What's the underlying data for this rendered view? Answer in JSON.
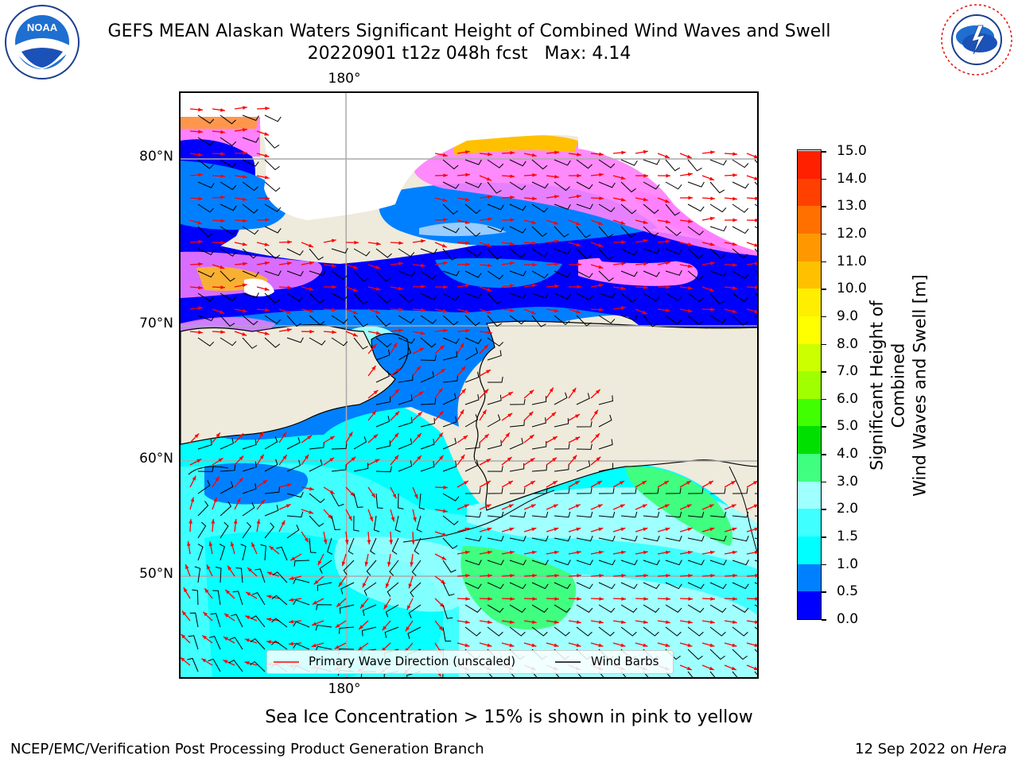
{
  "title": {
    "line1": "GEFS MEAN Alaskan Waters Significant Height of Combined Wind Waves and Swell",
    "line2": "20220901 t12z 048h fcst   Max: 4.14"
  },
  "logos": {
    "left": {
      "text": "NOAA",
      "ring_text": "NATIONAL OCEANIC AND ATMOSPHERIC ADMINISTRATION · U.S. DEPARTMENT OF COMMERCE"
    },
    "right": {
      "ring_text": "NATIONAL WEATHER SERVICE"
    }
  },
  "map": {
    "lat_labels": [
      "80°N",
      "70°N",
      "60°N",
      "50°N"
    ],
    "lon_label_top": "180°",
    "lon_label_bottom": "180°",
    "land_color": "#eeeadc",
    "ice_note": "Sea Ice Concentration > 15% is shown in pink to yellow"
  },
  "legend": {
    "wave_direction": "Primary Wave Direction (unscaled)",
    "wind_barbs": "Wind Barbs",
    "wave_color": "#ff0000",
    "barb_color": "#000000"
  },
  "colorbar": {
    "title_line1": "Significant Height of Combined",
    "title_line2": "Wind Waves and Swell [m]",
    "ticks": [
      "15.0",
      "14.0",
      "13.0",
      "12.0",
      "11.0",
      "10.0",
      "9.0",
      "8.0",
      "7.0",
      "6.0",
      "5.0",
      "4.0",
      "3.0",
      "2.0",
      "1.5",
      "1.0",
      "0.5",
      "0.0"
    ],
    "colors": [
      "#0000ff",
      "#0080ff",
      "#00ffff",
      "#40ffff",
      "#a0ffff",
      "#40ff80",
      "#00e000",
      "#40ff00",
      "#a0ff00",
      "#ccff00",
      "#ffff00",
      "#ffee00",
      "#ffc000",
      "#ff9800",
      "#ff7000",
      "#ff4000",
      "#ff2000",
      "#ff0000"
    ]
  },
  "footer": {
    "credit": "NCEP/EMC/Verification Post Processing Product Generation Branch",
    "date": "12 Sep 2022 on ",
    "machine": "Hera"
  }
}
